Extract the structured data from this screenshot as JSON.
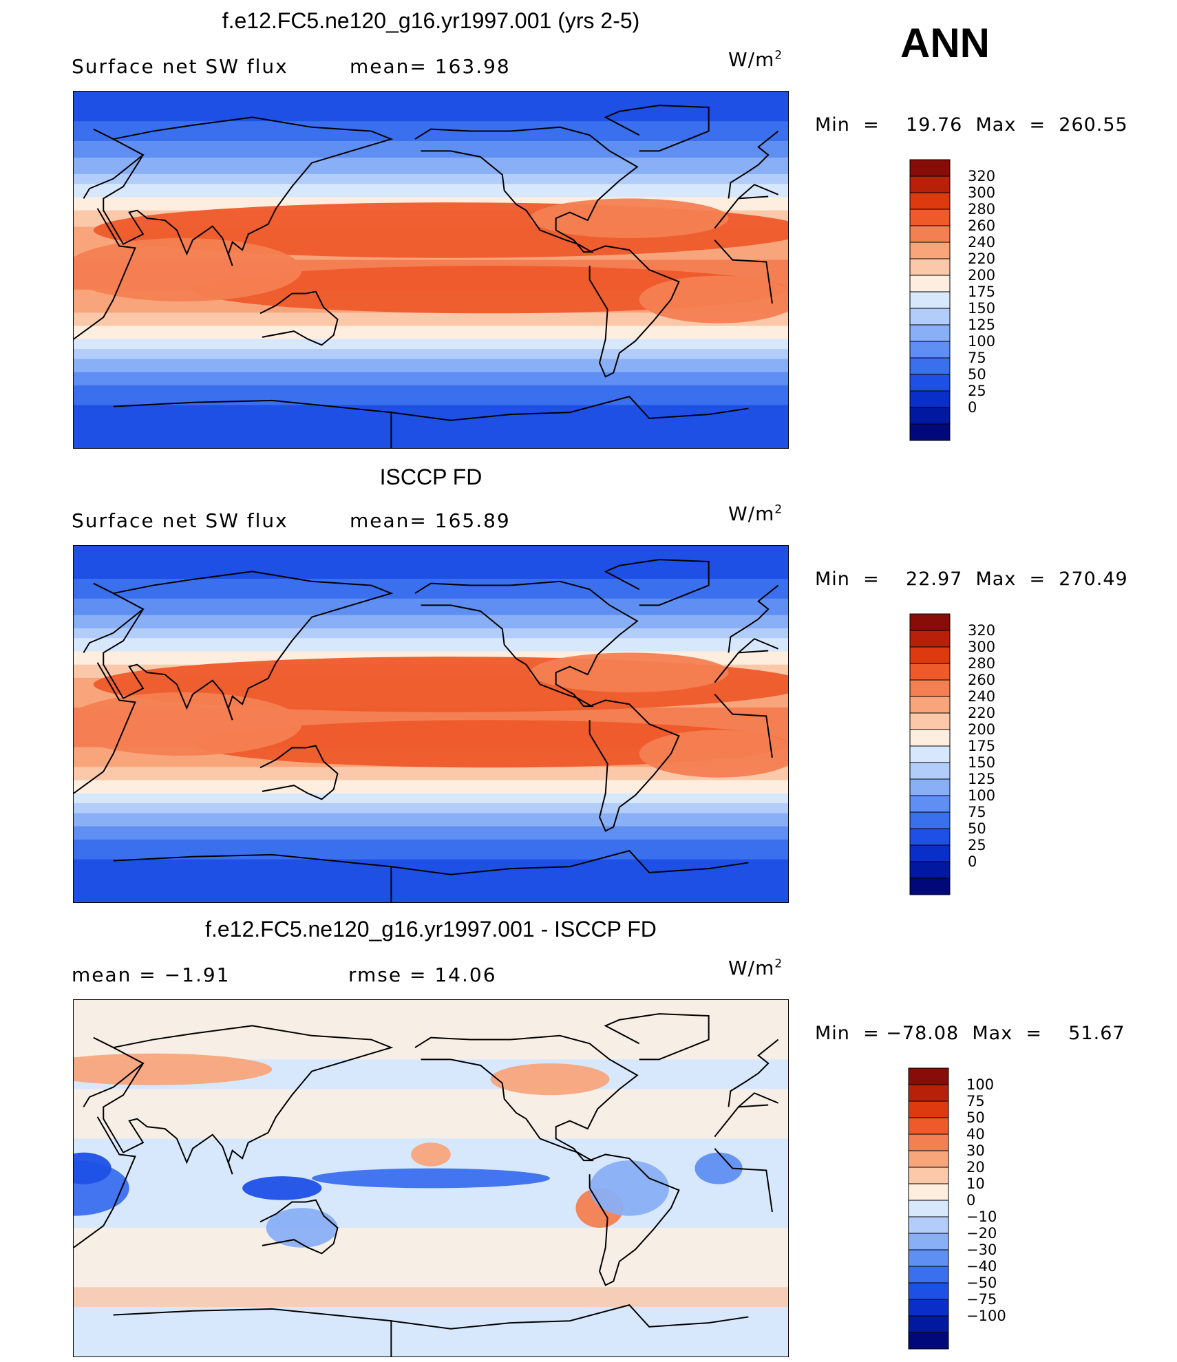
{
  "season": "ANN",
  "units": {
    "base": "W/m",
    "sup": "2"
  },
  "colors": {
    "abs": [
      "#00087a",
      "#0019a0",
      "#0a2fc8",
      "#1e50e6",
      "#3a6fee",
      "#5f8ff2",
      "#89aff6",
      "#b3cdfa",
      "#d8e8fc",
      "#fdeee0",
      "#fbc9aa",
      "#f8a57c",
      "#f47f52",
      "#ee5a2a",
      "#dd3a10",
      "#b8200a",
      "#880d08"
    ],
    "diff": [
      "#00087a",
      "#0019a0",
      "#0a2fc8",
      "#1e50e6",
      "#3a6fee",
      "#5f8ff2",
      "#89aff6",
      "#b3cdfa",
      "#d8e8fc",
      "#fdeee0",
      "#fbc9aa",
      "#f8a57c",
      "#f47f52",
      "#ee5a2a",
      "#dd3a10",
      "#b8200a",
      "#880d08"
    ]
  },
  "panels": [
    {
      "title": "f.e12.FC5.ne120_g16.yr1997.001 (yrs 2-5)",
      "left_label": "Surface net SW flux",
      "mid_label": "mean=  163.98",
      "min_text": "Min  =    19.76  Max  =  260.55",
      "levels": [
        "320",
        "300",
        "280",
        "260",
        "240",
        "220",
        "200",
        "175",
        "150",
        "125",
        "100",
        "75",
        "50",
        "25",
        "0"
      ]
    },
    {
      "title": "ISCCP FD",
      "left_label": "Surface net SW flux",
      "mid_label": "mean=  165.89",
      "min_text": "Min  =    22.97  Max  =  270.49",
      "levels": [
        "320",
        "300",
        "280",
        "260",
        "240",
        "220",
        "200",
        "175",
        "150",
        "125",
        "100",
        "75",
        "50",
        "25",
        "0"
      ]
    },
    {
      "title": "f.e12.FC5.ne120_g16.yr1997.001 - ISCCP FD",
      "left_label": "mean  =    −1.91",
      "mid_label": "rmse  =    14.06",
      "min_text": "Min  = −78.08  Max  =    51.67",
      "levels": [
        "100",
        "75",
        "50",
        "40",
        "30",
        "20",
        "10",
        "0",
        "−10",
        "−20",
        "−30",
        "−40",
        "−50",
        "−75",
        "−100"
      ]
    }
  ],
  "chart_data": [
    {
      "type": "heatmap",
      "title": "f.e12.FC5.ne120_g16.yr1997.001 (yrs 2-5)",
      "variable": "Surface net SW flux",
      "mean": 163.98,
      "min": 19.76,
      "max": 260.55,
      "contour_levels": [
        0,
        25,
        50,
        75,
        100,
        125,
        150,
        175,
        200,
        220,
        240,
        260,
        280,
        300,
        320
      ],
      "lat_profile": [
        [
          90,
          25
        ],
        [
          80,
          40
        ],
        [
          70,
          60
        ],
        [
          60,
          90
        ],
        [
          50,
          120
        ],
        [
          40,
          160
        ],
        [
          30,
          200
        ],
        [
          20,
          225
        ],
        [
          10,
          235
        ],
        [
          0,
          245
        ],
        [
          -10,
          240
        ],
        [
          -20,
          225
        ],
        [
          -30,
          195
        ],
        [
          -40,
          150
        ],
        [
          -50,
          105
        ],
        [
          -60,
          70
        ],
        [
          -70,
          45
        ],
        [
          -80,
          30
        ],
        [
          -90,
          25
        ]
      ]
    },
    {
      "type": "heatmap",
      "title": "ISCCP FD",
      "variable": "Surface net SW flux",
      "mean": 165.89,
      "min": 22.97,
      "max": 270.49,
      "contour_levels": [
        0,
        25,
        50,
        75,
        100,
        125,
        150,
        175,
        200,
        220,
        240,
        260,
        280,
        300,
        320
      ],
      "lat_profile": [
        [
          90,
          25
        ],
        [
          80,
          40
        ],
        [
          70,
          55
        ],
        [
          60,
          85
        ],
        [
          50,
          120
        ],
        [
          40,
          160
        ],
        [
          30,
          200
        ],
        [
          20,
          228
        ],
        [
          10,
          238
        ],
        [
          0,
          250
        ],
        [
          -10,
          242
        ],
        [
          -20,
          225
        ],
        [
          -30,
          195
        ],
        [
          -40,
          150
        ],
        [
          -50,
          105
        ],
        [
          -60,
          70
        ],
        [
          -70,
          45
        ],
        [
          -80,
          30
        ],
        [
          -90,
          25
        ]
      ]
    },
    {
      "type": "heatmap",
      "title": "f.e12.FC5.ne120_g16.yr1997.001 - ISCCP FD",
      "mean": -1.91,
      "rmse": 14.06,
      "min": -78.08,
      "max": 51.67,
      "contour_levels": [
        -100,
        -75,
        -50,
        -40,
        -30,
        -20,
        -10,
        0,
        10,
        20,
        30,
        40,
        50,
        75,
        100
      ]
    }
  ]
}
